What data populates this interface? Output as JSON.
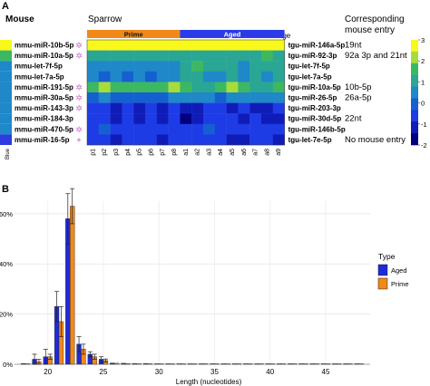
{
  "panel_a": {
    "panel_letter": "A",
    "mouse_header": "Mouse",
    "sparrow_header": "Sparrow",
    "age_label": "Age",
    "corresponding_header": [
      "Corresponding",
      "mouse entry"
    ],
    "age_groups": [
      {
        "label": "Prime",
        "color": "#F0881A",
        "start": 0,
        "count": 8
      },
      {
        "label": "Aged",
        "color": "#2B3BE8",
        "start": 8,
        "count": 9
      }
    ],
    "mouse_side_label": "Blue",
    "mouse_rows": [
      {
        "name": "mmu-miR-10b-5p",
        "mark": "✲",
        "mark_color": "#d070d0",
        "swatch": "#F8F81C"
      },
      {
        "name": "mmu-miR-10a-5p",
        "mark": "✲",
        "mark_color": "#d070d0",
        "swatch": "#3DB862"
      },
      {
        "name": "mmu-let-7f-5p",
        "mark": "",
        "mark_color": "",
        "swatch": "#1E88C8"
      },
      {
        "name": "mmu-let-7a-5p",
        "mark": "",
        "mark_color": "",
        "swatch": "#1E88C8"
      },
      {
        "name": "mmu-miR-191-5p",
        "mark": "✲",
        "mark_color": "#d070d0",
        "swatch": "#1E88C8"
      },
      {
        "name": "mmu-miR-30a-5p",
        "mark": "✲",
        "mark_color": "#d070d0",
        "swatch": "#1E88C8"
      },
      {
        "name": "mmu-miR-143-3p",
        "mark": "✲",
        "mark_color": "#d070d0",
        "swatch": "#1E88C8"
      },
      {
        "name": "mmu-miR-184-3p",
        "mark": "",
        "mark_color": "",
        "swatch": "#1E88C8"
      },
      {
        "name": "mmu-miR-470-5p",
        "mark": "✲",
        "mark_color": "#d070d0",
        "swatch": "#1E88C8"
      },
      {
        "name": "mmu-miR-16-5p",
        "mark": "+",
        "mark_color": "#c040c0",
        "swatch": "#2D3BE0"
      }
    ],
    "sparrow_rows": [
      "tgu-miR-146a-5p",
      "tgu-miR-92-3p",
      "tgu-let-7f-5p",
      "tgu-let-7a-5p",
      "tgu-miR-10a-5p",
      "tgu-miR-26-5p",
      "tgu-miR-203-3p",
      "tgu-miR-30d-5p",
      "tgu-miR-146b-5p",
      "tgu-let-7e-5p"
    ],
    "corresponding_entries": [
      "19nt",
      "92a 3p and 21nt",
      "",
      "",
      "10b-5p",
      "26a-5p",
      "",
      "22nt",
      "",
      "No mouse entry"
    ],
    "columns": [
      "p1",
      "p2",
      "p3",
      "p4",
      "p5",
      "p6",
      "p7",
      "p8",
      "a1",
      "a2",
      "a3",
      "a4",
      "a5",
      "a6",
      "a7",
      "a8",
      "a9"
    ],
    "heatmap_values": [
      [
        3.0,
        3.0,
        2.8,
        2.9,
        3.0,
        2.7,
        2.9,
        3.0,
        2.9,
        3.0,
        3.0,
        2.8,
        3.0,
        2.9,
        3.0,
        3.0,
        2.9
      ],
      [
        1.0,
        1.2,
        1.0,
        1.1,
        1.3,
        1.0,
        1.1,
        1.2,
        1.0,
        1.4,
        1.2,
        1.1,
        1.2,
        1.3,
        1.1,
        1.6,
        1.2
      ],
      [
        0.3,
        0.2,
        0.5,
        0.3,
        0.2,
        0.3,
        0.4,
        0.3,
        1.2,
        1.6,
        1.0,
        0.9,
        1.2,
        0.8,
        1.4,
        0.9,
        1.0
      ],
      [
        0.2,
        0.1,
        0.3,
        0.1,
        0.2,
        0.1,
        0.2,
        0.2,
        1.0,
        1.3,
        0.8,
        0.7,
        1.0,
        0.6,
        1.1,
        0.7,
        0.9
      ],
      [
        1.8,
        2.4,
        1.7,
        1.9,
        2.0,
        1.7,
        1.9,
        2.4,
        1.6,
        1.4,
        1.2,
        1.8,
        2.6,
        1.5,
        1.4,
        1.2,
        1.5
      ],
      [
        0.0,
        0.2,
        -0.4,
        0.1,
        0.0,
        -0.3,
        0.1,
        0.2,
        0.4,
        0.5,
        0.2,
        0.1,
        0.5,
        0.3,
        0.6,
        0.2,
        0.4
      ],
      [
        -1.0,
        -0.9,
        -1.2,
        -1.0,
        -1.2,
        -1.0,
        -1.1,
        -1.0,
        -1.2,
        -1.1,
        -1.0,
        -0.9,
        -1.2,
        -1.0,
        -1.2,
        -1.1,
        -1.0
      ],
      [
        -0.9,
        -1.0,
        -1.2,
        -1.0,
        -1.1,
        -1.0,
        -1.2,
        -1.0,
        -2.0,
        -1.1,
        -1.0,
        -0.8,
        -1.0,
        -1.2,
        -1.0,
        -1.1,
        -1.2
      ],
      [
        -0.5,
        -0.4,
        -0.7,
        -0.5,
        -0.6,
        -0.8,
        -0.6,
        -0.5,
        -0.9,
        -0.6,
        -0.4,
        -0.5,
        -0.6,
        -0.5,
        -0.7,
        -0.5,
        -0.6
      ],
      [
        -1.0,
        -0.8,
        -1.1,
        -0.9,
        -1.0,
        -0.9,
        -1.1,
        -0.8,
        -1.0,
        -0.9,
        -0.8,
        -1.0,
        -1.2,
        -1.1,
        -1.0,
        -0.9,
        -1.1
      ]
    ],
    "colorbar": {
      "ticks": [
        3,
        2,
        1,
        0,
        -1,
        -2
      ],
      "colors": [
        "#F8F81C",
        "#A8DC3A",
        "#3DB862",
        "#2AA694",
        "#1E88C8",
        "#1460D0",
        "#1E3CE6",
        "#101CB8",
        "#000080"
      ]
    }
  },
  "chart_data": {
    "type": "bar",
    "panel_letter": "B",
    "xlabel": "Length (nucleotides)",
    "ylabel": "",
    "xlim": [
      17,
      49
    ],
    "ylim": [
      0,
      0.65
    ],
    "x_ticks": [
      20,
      25,
      30,
      35,
      40,
      45
    ],
    "y_ticks": [
      {
        "value": 0,
        "label": "0%"
      },
      {
        "value": 0.2,
        "label": "20%"
      },
      {
        "value": 0.4,
        "label": "40%"
      },
      {
        "value": 0.6,
        "label": "60%"
      }
    ],
    "x": [
      18,
      19,
      20,
      21,
      22,
      23,
      24,
      25,
      26,
      27,
      28,
      29,
      30,
      31,
      32,
      33,
      34,
      35,
      36,
      37,
      38,
      39,
      40,
      41,
      42,
      43,
      44,
      45,
      46,
      47,
      48
    ],
    "series": [
      {
        "name": "Aged",
        "color": "#1F2BD8",
        "values": [
          0.003,
          0.02,
          0.03,
          0.23,
          0.58,
          0.08,
          0.04,
          0.02,
          0.005,
          0.004,
          0.003,
          0.003,
          0.002,
          0.002,
          0.002,
          0.002,
          0.002,
          0.002,
          0.002,
          0.002,
          0.002,
          0.002,
          0.002,
          0.002,
          0.002,
          0.002,
          0.002,
          0.002,
          0.002,
          0.002,
          0.002
        ],
        "errors": [
          0.003,
          0.02,
          0.03,
          0.06,
          0.1,
          0.03,
          0.01,
          0.01,
          0.004,
          0.003,
          0.002,
          0.002,
          0.001,
          0.001,
          0.001,
          0.001,
          0.001,
          0.001,
          0.001,
          0.001,
          0.001,
          0.001,
          0.001,
          0.001,
          0.001,
          0.001,
          0.001,
          0.001,
          0.001,
          0.001,
          0.001
        ]
      },
      {
        "name": "Prime",
        "color": "#F0881A",
        "values": [
          0.002,
          0.01,
          0.03,
          0.17,
          0.63,
          0.06,
          0.03,
          0.015,
          0.004,
          0.003,
          0.002,
          0.002,
          0.002,
          0.002,
          0.002,
          0.002,
          0.002,
          0.002,
          0.002,
          0.002,
          0.002,
          0.002,
          0.002,
          0.002,
          0.002,
          0.002,
          0.002,
          0.002,
          0.002,
          0.002,
          0.002
        ],
        "errors": [
          0.002,
          0.01,
          0.01,
          0.06,
          0.07,
          0.02,
          0.01,
          0.006,
          0.003,
          0.002,
          0.001,
          0.001,
          0.001,
          0.001,
          0.001,
          0.001,
          0.001,
          0.001,
          0.001,
          0.001,
          0.001,
          0.001,
          0.001,
          0.001,
          0.001,
          0.001,
          0.001,
          0.001,
          0.001,
          0.001,
          0.001
        ]
      }
    ],
    "legend": {
      "title": "Type",
      "placement": "right"
    }
  }
}
